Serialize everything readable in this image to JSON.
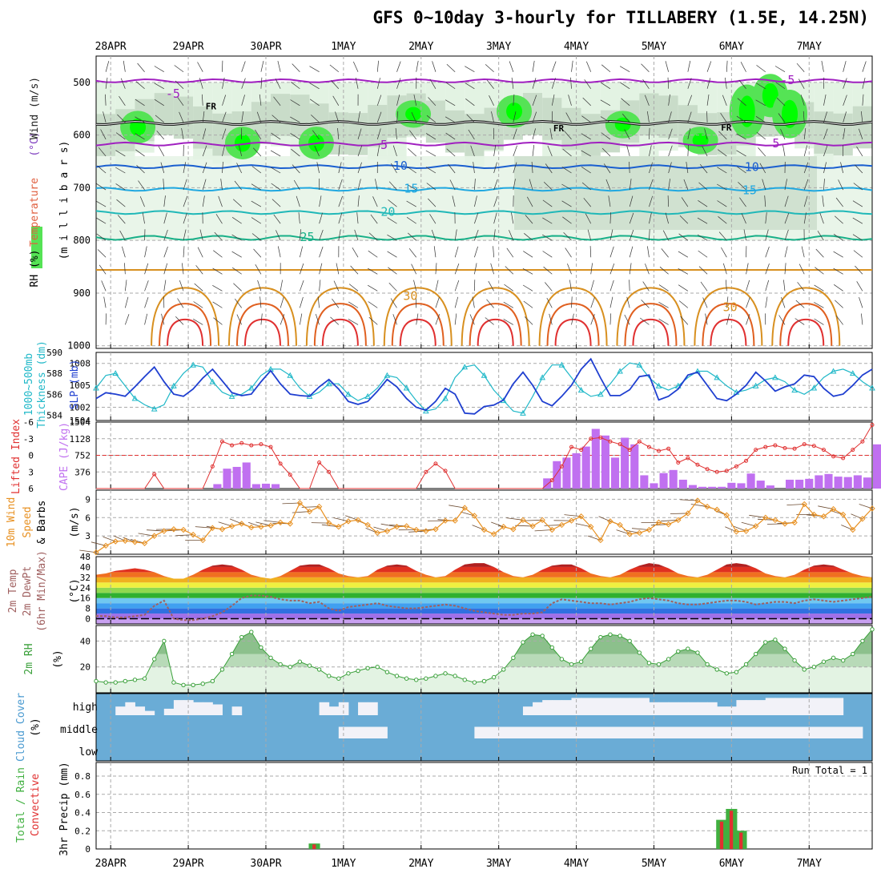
{
  "title": "GFS 0~10day 3-hourly for TILLABERY (1.5E, 14.25N)",
  "colors": {
    "rh_light": "#e3f3e3",
    "rh_mid": "#c9dcc9",
    "rh_dark": "#8fa08f",
    "rh_green": "#55e355",
    "rh_bright": "#00ff00",
    "freezing": "#000000",
    "t_purple": "#a020c0",
    "t_blue": "#1a5fd0",
    "t_cyan": "#20a8e0",
    "t_teal": "#20b8b8",
    "t_green": "#18b088",
    "t_orange": "#d89020",
    "t_red": "#e03030",
    "slp": "#1f3fd0",
    "thickness": "#20b8c8",
    "cape": "#c070f0",
    "lifted": "#e03030",
    "wind10": "#e89020",
    "barb": "#6b4a30",
    "dewpt": "#a06060",
    "rh2m": "#3aa03a",
    "cloud": "#6aacd6",
    "cloud_clear": "#f2f2f8",
    "precip_total": "#40b040",
    "precip_conv": "#e03030"
  },
  "time_axis": {
    "dates": [
      "28APR",
      "29APR",
      "30APR",
      "1MAY",
      "2MAY",
      "3MAY",
      "4MAY",
      "5MAY",
      "6MAY",
      "7MAY"
    ],
    "first_tick_offset_steps": 1.5,
    "steps_per_day": 8,
    "total_steps": 80
  },
  "panels": {
    "upper": {
      "label_parts": [
        {
          "text": "RH (%)",
          "color": "#30a030"
        },
        {
          "text": "Temperature",
          "color": "#e06040"
        },
        {
          "text": "(°C)",
          "color": "#8040c0"
        },
        {
          "text": "Wind (m/s)",
          "color": "#202020"
        }
      ],
      "ylabel": "(m i l l i b a r s)",
      "levels": [
        500,
        600,
        700,
        800,
        900,
        1000
      ],
      "ylim": [
        450,
        1005
      ],
      "temperature_contours": [
        {
          "value": -5,
          "label": "-5",
          "pressure": 497,
          "color_key": "t_purple"
        },
        {
          "value": 0,
          "label": "FR",
          "pressure": 577,
          "color_key": "freezing"
        },
        {
          "value": 5,
          "label": "5",
          "pressure": 617,
          "color_key": "t_purple"
        },
        {
          "value": 10,
          "label": "10",
          "pressure": 660,
          "color_key": "t_blue"
        },
        {
          "value": 15,
          "label": "15",
          "pressure": 703,
          "color_key": "t_cyan"
        },
        {
          "value": 20,
          "label": "20",
          "pressure": 747,
          "color_key": "t_teal"
        },
        {
          "value": 25,
          "label": "25",
          "pressure": 795,
          "color_key": "t_green"
        },
        {
          "value": 30,
          "label": "30",
          "pressure": 856,
          "color_key": "t_orange"
        }
      ],
      "contour_labels": [
        {
          "text": "-5",
          "day": 0.99,
          "pressure": 523,
          "color_key": "t_purple"
        },
        {
          "text": "FR",
          "day": 1.48,
          "pressure": 545,
          "color_key": "freezing"
        },
        {
          "text": "5",
          "day": 3.71,
          "pressure": 620,
          "color_key": "t_purple"
        },
        {
          "text": "10",
          "day": 3.92,
          "pressure": 660,
          "color_key": "t_blue"
        },
        {
          "text": "15",
          "day": 4.06,
          "pressure": 703,
          "color_key": "t_cyan"
        },
        {
          "text": "20",
          "day": 3.76,
          "pressure": 747,
          "color_key": "t_teal"
        },
        {
          "text": "25",
          "day": 2.72,
          "pressure": 795,
          "color_key": "t_green"
        },
        {
          "text": "30",
          "day": 4.05,
          "pressure": 907,
          "color_key": "t_orange"
        },
        {
          "text": "FR",
          "day": 5.96,
          "pressure": 587,
          "color_key": "freezing"
        },
        {
          "text": "FR",
          "day": 8.12,
          "pressure": 585,
          "color_key": "freezing"
        },
        {
          "text": "10",
          "day": 8.45,
          "pressure": 662,
          "color_key": "t_blue"
        },
        {
          "text": "15",
          "day": 8.42,
          "pressure": 706,
          "color_key": "t_cyan"
        },
        {
          "text": "30",
          "day": 8.17,
          "pressure": 928,
          "color_key": "t_orange"
        },
        {
          "text": "-5",
          "day": 8.91,
          "pressure": 497,
          "color_key": "t_purple"
        },
        {
          "text": "5",
          "day": 8.76,
          "pressure": 617,
          "color_key": "t_purple"
        }
      ]
    },
    "slp": {
      "label_left": "1000~500mb",
      "label_left2": "Thickness (dm)",
      "label_right": "SLP (mb)",
      "left_ticks": [
        584,
        586,
        588,
        590
      ],
      "right_ticks": [
        1002,
        1005,
        1008
      ],
      "thickness_ylim": [
        583.5,
        590
      ],
      "slp_ylim": [
        1000.2,
        1009.5
      ],
      "slp": [
        1003.2,
        1004.0,
        1003.8,
        1003.5,
        1004.8,
        1006.2,
        1007.5,
        1005.5,
        1003.8,
        1003.5,
        1004.5,
        1006.0,
        1007.2,
        1005.6,
        1004.0,
        1003.6,
        1003.8,
        1005.5,
        1007.0,
        1005.2,
        1003.8,
        1003.6,
        1003.5,
        1004.8,
        1005.8,
        1004.5,
        1002.8,
        1002.4,
        1002.8,
        1004.2,
        1005.8,
        1004.8,
        1003.2,
        1002.0,
        1001.6,
        1002.8,
        1004.6,
        1003.8,
        1001.2,
        1001.1,
        1002.1,
        1002.3,
        1003.0,
        1005.2,
        1006.8,
        1005.0,
        1002.8,
        1002.2,
        1003.5,
        1005.0,
        1007.2,
        1008.6,
        1006.0,
        1003.6,
        1003.6,
        1004.4,
        1006.2,
        1006.4,
        1003.0,
        1003.5,
        1004.5,
        1006.4,
        1006.8,
        1005.0,
        1003.2,
        1002.9,
        1003.8,
        1005.0,
        1006.8,
        1005.6,
        1004.2,
        1004.8,
        1005.2,
        1006.4,
        1006.2,
        1004.6,
        1003.5,
        1003.8,
        1005.0,
        1006.4,
        1007.2
      ],
      "thickness": [
        586.6,
        587.8,
        588.0,
        586.8,
        585.6,
        585.0,
        584.6,
        585.0,
        586.8,
        588.0,
        588.8,
        588.6,
        587.2,
        586.2,
        585.8,
        586.0,
        586.6,
        587.8,
        588.4,
        588.4,
        587.8,
        586.6,
        585.8,
        586.2,
        587.0,
        587.0,
        586.0,
        585.4,
        585.8,
        586.6,
        587.8,
        587.6,
        586.6,
        585.4,
        584.4,
        584.6,
        585.6,
        587.6,
        588.6,
        588.8,
        587.8,
        586.4,
        585.4,
        584.4,
        584.2,
        585.8,
        587.6,
        588.8,
        588.8,
        587.6,
        586.4,
        585.8,
        586.0,
        587.0,
        588.2,
        589.0,
        588.8,
        587.6,
        586.8,
        586.4,
        586.8,
        587.6,
        588.2,
        588.2,
        587.6,
        586.8,
        586.2,
        586.4,
        586.8,
        587.4,
        587.6,
        587.2,
        586.4,
        586.0,
        586.6,
        587.6,
        588.2,
        588.4,
        588.0,
        587.2,
        586.6
      ]
    },
    "cape": {
      "label_left": "Lifted Index",
      "label_right": "CAPE (J/kg)",
      "li_ticks": [
        -6,
        -3,
        0,
        3,
        6
      ],
      "cape_ticks": [
        376,
        752,
        1128,
        1504
      ],
      "cape_ylim": [
        0,
        1504
      ],
      "li_ylim": [
        6,
        -6
      ],
      "cape": [
        0,
        0,
        0,
        0,
        0,
        0,
        0,
        0,
        0,
        0,
        0,
        0,
        100,
        450,
        490,
        590,
        100,
        110,
        100,
        0,
        0,
        0,
        0,
        0,
        0,
        0,
        0,
        0,
        0,
        0,
        0,
        0,
        0,
        0,
        0,
        0,
        0,
        0,
        0,
        0,
        0,
        0,
        0,
        0,
        0,
        0,
        0,
        0,
        0,
        0,
        0,
        0,
        0,
        0,
        0,
        0,
        0,
        0,
        0,
        0,
        0,
        0,
        0,
        0,
        0,
        0,
        0,
        0,
        0,
        0,
        0,
        0,
        0,
        0,
        0,
        0,
        0,
        0,
        0,
        0,
        0
      ],
      "cape_b": [
        0,
        0,
        0,
        0,
        0,
        0,
        0,
        0,
        0,
        0,
        0,
        0,
        0,
        0,
        0,
        0,
        0,
        0,
        0,
        0,
        0,
        0,
        0,
        0,
        0,
        0,
        0,
        0,
        0,
        0,
        0,
        0,
        0,
        0,
        0,
        0,
        0,
        0,
        0,
        0,
        0,
        0,
        0,
        0,
        0,
        0,
        0,
        0,
        0,
        0,
        0,
        0,
        0,
        0,
        0,
        0,
        0,
        0,
        0,
        0,
        0,
        0,
        0,
        0,
        0,
        0,
        0,
        0,
        0,
        0,
        0,
        0,
        0,
        0,
        0,
        0,
        0,
        0,
        0,
        0,
        0
      ],
      "cape_late": [
        230,
        620,
        700,
        800,
        950,
        1350,
        1200,
        700,
        1150,
        1000,
        300,
        120,
        350,
        420,
        200,
        80,
        40,
        40,
        40,
        130,
        120,
        340,
        180,
        70,
        0,
        200,
        200,
        220,
        300,
        330,
        270,
        260,
        300,
        250,
        1000
      ],
      "late_start_step": 46,
      "lifted_index": [
        6,
        6,
        6,
        6,
        6,
        6,
        3.4,
        6,
        6,
        6,
        6,
        6,
        2,
        -2.5,
        -1.8,
        -2.2,
        -1.8,
        -2.0,
        -1.5,
        1.5,
        3.5,
        6,
        6,
        1.3,
        3.0,
        6,
        6,
        6,
        6,
        6,
        6,
        6,
        6,
        6,
        3.0,
        1.5,
        2.8,
        6,
        6,
        6,
        6,
        6,
        6,
        6,
        6,
        6,
        6,
        4.5,
        2.0,
        -1.5,
        -1.0,
        -3.0,
        -3.2,
        -2.5,
        -2.0,
        -1.0,
        -2.5,
        -1.5,
        -0.8,
        -1.2,
        1.3,
        0.5,
        1.7,
        2.5,
        3.0,
        2.8,
        2.0,
        1.0,
        -1.0,
        -1.5,
        -1.8,
        -1.3,
        -1.2,
        -2.0,
        -1.7,
        -1.0,
        0.2,
        0.5,
        -1.0,
        -2.5,
        -5.5
      ]
    },
    "wind10": {
      "label_left": "10m Wind",
      "label_left2": "Speed",
      "label_left3": "& Barbs",
      "label_right": "(m/s)",
      "ticks": [
        3,
        6,
        9
      ],
      "ylim": [
        0,
        10.5
      ],
      "speed": [
        0.3,
        1.4,
        2.1,
        2.2,
        2.0,
        1.8,
        3.0,
        3.8,
        4.1,
        4.0,
        3.2,
        2.3,
        4.3,
        4.1,
        4.6,
        5.0,
        4.4,
        4.5,
        4.7,
        5.2,
        5.0,
        8.4,
        7.0,
        7.8,
        5.1,
        4.5,
        5.4,
        5.6,
        4.8,
        3.5,
        3.8,
        4.5,
        4.6,
        4.0,
        3.8,
        4.1,
        5.5,
        5.5,
        7.6,
        6.3,
        4.0,
        3.3,
        4.5,
        4.1,
        5.6,
        4.6,
        5.6,
        4.0,
        4.8,
        5.5,
        6.2,
        4.5,
        2.3,
        5.4,
        4.8,
        3.3,
        3.5,
        4.0,
        5.2,
        4.9,
        5.6,
        6.7,
        8.8,
        7.8,
        7.3,
        6.4,
        3.7,
        3.8,
        4.6,
        6.0,
        5.6,
        5.0,
        5.2,
        8.2,
        6.5,
        6.2,
        7.4,
        6.5,
        4.0,
        5.8,
        7.5
      ]
    },
    "temp2m": {
      "label_left": "2m Temp",
      "label_left2": "2m DewPt",
      "label_left3": "(6hr Min/Max)",
      "label_right": "(°C)",
      "ticks": [
        0,
        8,
        16,
        24,
        32,
        40,
        48
      ],
      "ylim": [
        -4,
        48
      ],
      "temp": [
        34,
        35,
        37,
        38,
        39,
        38,
        36,
        33,
        31,
        31,
        34,
        38,
        41,
        42,
        41,
        38,
        34,
        32,
        31,
        33,
        37,
        41,
        42,
        42,
        39,
        35,
        33,
        32,
        33,
        38,
        41,
        42,
        41,
        37,
        34,
        32,
        33,
        38,
        42,
        43,
        43,
        40,
        36,
        33,
        32,
        34,
        38,
        41,
        42,
        42,
        39,
        35,
        33,
        32,
        34,
        38,
        41,
        43,
        42,
        39,
        35,
        33,
        32,
        34,
        38,
        42,
        43,
        42,
        39,
        35,
        33,
        32,
        34,
        38,
        41,
        42,
        41,
        38,
        35,
        33,
        32
      ],
      "dewpt": [
        2,
        2,
        1,
        1,
        2,
        3,
        10,
        14,
        0,
        -1,
        -1,
        0,
        2,
        5,
        10,
        16,
        18,
        18,
        17,
        15,
        14,
        14,
        12,
        13,
        8,
        6,
        9,
        10,
        11,
        12,
        10,
        9,
        8,
        8,
        9,
        10,
        11,
        10,
        8,
        6,
        5,
        4,
        3,
        3,
        4,
        4,
        5,
        12,
        15,
        14,
        13,
        12,
        12,
        11,
        12,
        13,
        15,
        16,
        15,
        14,
        12,
        11,
        11,
        12,
        13,
        14,
        14,
        13,
        11,
        12,
        13,
        13,
        12,
        14,
        15,
        14,
        13,
        14,
        15,
        16,
        17
      ]
    },
    "rh2m": {
      "label_left": "2m RH",
      "label_right": "(%)",
      "ticks": [
        20,
        40
      ],
      "ylim": [
        0,
        52
      ],
      "rh": [
        9,
        8,
        8,
        9,
        10,
        11,
        26,
        40,
        8,
        6,
        6,
        7,
        9,
        18,
        30,
        43,
        47,
        35,
        27,
        22,
        20,
        24,
        21,
        18,
        13,
        11,
        15,
        17,
        19,
        20,
        16,
        13,
        11,
        10,
        11,
        13,
        15,
        13,
        10,
        8,
        9,
        12,
        18,
        27,
        39,
        45,
        44,
        35,
        26,
        22,
        24,
        34,
        43,
        45,
        44,
        40,
        31,
        23,
        22,
        26,
        32,
        34,
        31,
        22,
        18,
        15,
        16,
        22,
        30,
        39,
        41,
        34,
        25,
        18,
        20,
        24,
        27,
        25,
        30,
        40,
        49
      ]
    },
    "cloud": {
      "label_left": "Cloud Cover",
      "label_right": "(%)",
      "levels": [
        "high",
        "middle",
        "low"
      ],
      "high": [
        95,
        95,
        60,
        40,
        60,
        80,
        95,
        70,
        30,
        30,
        40,
        40,
        50,
        95,
        60,
        95,
        95,
        95,
        95,
        95,
        95,
        95,
        95,
        40,
        60,
        40,
        95,
        40,
        40,
        95,
        95,
        95,
        95,
        95,
        95,
        95,
        95,
        95,
        95,
        95,
        95,
        95,
        95,
        95,
        60,
        40,
        30,
        30,
        30,
        20,
        20,
        20,
        20,
        20,
        20,
        20,
        20,
        40,
        40,
        40,
        40,
        40,
        40,
        40,
        60,
        60,
        30,
        30,
        30,
        20,
        20,
        20,
        20,
        20,
        20,
        20,
        20,
        95,
        95,
        95,
        95
      ],
      "middle": [
        95,
        95,
        95,
        95,
        95,
        95,
        95,
        95,
        95,
        95,
        95,
        95,
        95,
        95,
        95,
        95,
        95,
        95,
        95,
        95,
        95,
        95,
        95,
        95,
        95,
        50,
        50,
        50,
        50,
        50,
        95,
        95,
        95,
        95,
        95,
        95,
        95,
        95,
        95,
        50,
        50,
        50,
        50,
        50,
        50,
        50,
        50,
        50,
        50,
        50,
        50,
        50,
        50,
        50,
        50,
        50,
        50,
        50,
        50,
        50,
        50,
        50,
        50,
        50,
        50,
        50,
        50,
        50,
        50,
        50,
        50,
        50,
        50,
        50,
        50,
        50,
        50,
        50,
        50,
        95,
        95
      ]
    },
    "precip": {
      "label_left": "Total / Rain",
      "label_left2": "Convective",
      "label_right": "3hr Precip (mm)",
      "run_total": "Run Total = 1",
      "ticks": [
        0,
        0.2,
        0.4,
        0.6,
        0.8
      ],
      "ylim": [
        0,
        0.95
      ],
      "bars": [
        {
          "step": 22,
          "total": 0.06,
          "conv": 0.05
        },
        {
          "step": 64,
          "total": 0.32,
          "conv": 0.3
        },
        {
          "step": 65,
          "total": 0.44,
          "conv": 0.42
        },
        {
          "step": 66,
          "total": 0.2,
          "conv": 0.18
        }
      ]
    }
  }
}
